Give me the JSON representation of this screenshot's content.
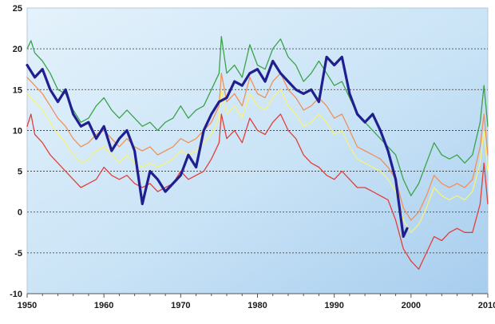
{
  "chart_data": {
    "type": "line",
    "title": "",
    "xlabel": "",
    "ylabel": "",
    "xlim": [
      1950,
      2010
    ],
    "ylim": [
      -10,
      25
    ],
    "grid": "horizontal dashed",
    "legend": "none",
    "x_ticks": [
      "1950",
      "1960",
      "1970",
      "1980",
      "1990",
      "2000",
      "2010"
    ],
    "y_ticks": [
      "25",
      "20",
      "15",
      "10",
      "5",
      "0",
      "-5",
      "-10"
    ],
    "series": [
      {
        "color": "#3aa34a",
        "points": [
          [
            1950,
            20
          ],
          [
            1950.5,
            21
          ],
          [
            1951,
            19.5
          ],
          [
            1952,
            18.5
          ],
          [
            1953,
            17
          ],
          [
            1954,
            15
          ],
          [
            1955,
            14.5
          ],
          [
            1956,
            12.5
          ],
          [
            1957,
            11
          ],
          [
            1958,
            11.5
          ],
          [
            1959,
            13
          ],
          [
            1960,
            14
          ],
          [
            1961,
            12.5
          ],
          [
            1962,
            11.5
          ],
          [
            1963,
            12.5
          ],
          [
            1964,
            11.5
          ],
          [
            1965,
            10.5
          ],
          [
            1966,
            11
          ],
          [
            1967,
            10
          ],
          [
            1968,
            11
          ],
          [
            1969,
            11.5
          ],
          [
            1970,
            13
          ],
          [
            1971,
            11.5
          ],
          [
            1972,
            12.5
          ],
          [
            1973,
            13
          ],
          [
            1974,
            15
          ],
          [
            1975,
            17
          ],
          [
            1975.3,
            21.5
          ],
          [
            1976,
            17
          ],
          [
            1977,
            18
          ],
          [
            1978,
            16.5
          ],
          [
            1979,
            20.5
          ],
          [
            1980,
            18
          ],
          [
            1981,
            17.5
          ],
          [
            1982,
            20
          ],
          [
            1983,
            21.2
          ],
          [
            1984,
            19
          ],
          [
            1985,
            18
          ],
          [
            1986,
            16
          ],
          [
            1987,
            17
          ],
          [
            1988,
            18.5
          ],
          [
            1989,
            17
          ],
          [
            1990,
            15.5
          ],
          [
            1991,
            16
          ],
          [
            1992,
            14
          ],
          [
            1993,
            12
          ],
          [
            1994,
            11
          ],
          [
            1995,
            10
          ],
          [
            1996,
            9
          ],
          [
            1997,
            8
          ],
          [
            1998,
            7
          ],
          [
            1999,
            4
          ],
          [
            2000,
            2
          ],
          [
            2001,
            3.5
          ],
          [
            2002,
            6
          ],
          [
            2003,
            8.5
          ],
          [
            2004,
            7
          ],
          [
            2005,
            6.5
          ],
          [
            2006,
            7
          ],
          [
            2007,
            6
          ],
          [
            2008,
            7
          ],
          [
            2009,
            11
          ],
          [
            2009.5,
            15.5
          ],
          [
            2010,
            10.5
          ]
        ]
      },
      {
        "color": "#f0905a",
        "points": [
          [
            1950,
            16.5
          ],
          [
            1951,
            15.5
          ],
          [
            1952,
            14.5
          ],
          [
            1953,
            13
          ],
          [
            1954,
            11.5
          ],
          [
            1955,
            10.5
          ],
          [
            1956,
            9
          ],
          [
            1957,
            8
          ],
          [
            1958,
            8.5
          ],
          [
            1959,
            9.5
          ],
          [
            1960,
            10
          ],
          [
            1961,
            9
          ],
          [
            1962,
            8
          ],
          [
            1963,
            9
          ],
          [
            1964,
            8
          ],
          [
            1965,
            7.5
          ],
          [
            1966,
            8
          ],
          [
            1967,
            7
          ],
          [
            1968,
            7.5
          ],
          [
            1969,
            8
          ],
          [
            1970,
            9
          ],
          [
            1971,
            8.5
          ],
          [
            1972,
            9
          ],
          [
            1973,
            10
          ],
          [
            1974,
            11
          ],
          [
            1975,
            13
          ],
          [
            1975.3,
            17
          ],
          [
            1976,
            13.5
          ],
          [
            1977,
            14.5
          ],
          [
            1978,
            13
          ],
          [
            1979,
            16.5
          ],
          [
            1980,
            14.5
          ],
          [
            1981,
            14
          ],
          [
            1982,
            16
          ],
          [
            1983,
            17
          ],
          [
            1984,
            15
          ],
          [
            1985,
            14
          ],
          [
            1986,
            12.5
          ],
          [
            1987,
            13
          ],
          [
            1988,
            14
          ],
          [
            1989,
            13
          ],
          [
            1990,
            11.5
          ],
          [
            1991,
            12
          ],
          [
            1992,
            10
          ],
          [
            1993,
            8
          ],
          [
            1994,
            7.5
          ],
          [
            1995,
            7
          ],
          [
            1996,
            6.5
          ],
          [
            1997,
            5.5
          ],
          [
            1998,
            4
          ],
          [
            1999,
            0.5
          ],
          [
            2000,
            -1
          ],
          [
            2001,
            0
          ],
          [
            2002,
            2
          ],
          [
            2003,
            4.5
          ],
          [
            2004,
            3.5
          ],
          [
            2005,
            3
          ],
          [
            2006,
            3.5
          ],
          [
            2007,
            3
          ],
          [
            2008,
            4
          ],
          [
            2009,
            8
          ],
          [
            2009.5,
            12
          ],
          [
            2010,
            7
          ]
        ]
      },
      {
        "color": "#f7f27a",
        "points": [
          [
            1950,
            14.5
          ],
          [
            1951,
            13.5
          ],
          [
            1952,
            12.5
          ],
          [
            1953,
            11
          ],
          [
            1954,
            9.5
          ],
          [
            1955,
            8.5
          ],
          [
            1956,
            7
          ],
          [
            1957,
            6
          ],
          [
            1958,
            6.5
          ],
          [
            1959,
            7.5
          ],
          [
            1960,
            8
          ],
          [
            1961,
            7
          ],
          [
            1962,
            6
          ],
          [
            1963,
            7
          ],
          [
            1964,
            6
          ],
          [
            1965,
            5.5
          ],
          [
            1966,
            6
          ],
          [
            1967,
            5.5
          ],
          [
            1968,
            6
          ],
          [
            1969,
            6.5
          ],
          [
            1970,
            7.5
          ],
          [
            1971,
            7
          ],
          [
            1972,
            7.5
          ],
          [
            1973,
            8.5
          ],
          [
            1974,
            9.5
          ],
          [
            1975,
            11.5
          ],
          [
            1975.3,
            15
          ],
          [
            1976,
            12
          ],
          [
            1977,
            13
          ],
          [
            1978,
            11.5
          ],
          [
            1979,
            14.5
          ],
          [
            1980,
            13
          ],
          [
            1981,
            12.5
          ],
          [
            1982,
            14
          ],
          [
            1983,
            15
          ],
          [
            1984,
            13
          ],
          [
            1985,
            12
          ],
          [
            1986,
            10.5
          ],
          [
            1987,
            11
          ],
          [
            1988,
            12
          ],
          [
            1989,
            11
          ],
          [
            1990,
            9.5
          ],
          [
            1991,
            10
          ],
          [
            1992,
            8
          ],
          [
            1993,
            6.5
          ],
          [
            1994,
            6
          ],
          [
            1995,
            5.5
          ],
          [
            1996,
            5
          ],
          [
            1997,
            4
          ],
          [
            1998,
            2.5
          ],
          [
            1999,
            -1
          ],
          [
            2000,
            -2.5
          ],
          [
            2001,
            -1.5
          ],
          [
            2002,
            0.5
          ],
          [
            2003,
            3
          ],
          [
            2004,
            2
          ],
          [
            2005,
            1.5
          ],
          [
            2006,
            2
          ],
          [
            2007,
            1.5
          ],
          [
            2008,
            2.5
          ],
          [
            2009,
            6
          ],
          [
            2009.5,
            10
          ],
          [
            2010,
            5
          ]
        ]
      },
      {
        "color": "#e0403a",
        "points": [
          [
            1950,
            10.5
          ],
          [
            1950.5,
            12
          ],
          [
            1951,
            9.5
          ],
          [
            1952,
            8.5
          ],
          [
            1953,
            7
          ],
          [
            1954,
            6
          ],
          [
            1955,
            5
          ],
          [
            1956,
            4
          ],
          [
            1957,
            3
          ],
          [
            1958,
            3.5
          ],
          [
            1959,
            4
          ],
          [
            1960,
            5.5
          ],
          [
            1961,
            4.5
          ],
          [
            1962,
            4
          ],
          [
            1963,
            4.5
          ],
          [
            1964,
            3.5
          ],
          [
            1965,
            3
          ],
          [
            1966,
            3.5
          ],
          [
            1967,
            2.5
          ],
          [
            1968,
            3
          ],
          [
            1969,
            3.5
          ],
          [
            1970,
            5
          ],
          [
            1971,
            4
          ],
          [
            1972,
            4.5
          ],
          [
            1973,
            5
          ],
          [
            1974,
            6.5
          ],
          [
            1975,
            8.5
          ],
          [
            1975.3,
            12
          ],
          [
            1976,
            9
          ],
          [
            1977,
            10
          ],
          [
            1978,
            8.5
          ],
          [
            1979,
            11.5
          ],
          [
            1980,
            10
          ],
          [
            1981,
            9.5
          ],
          [
            1982,
            11
          ],
          [
            1983,
            12
          ],
          [
            1984,
            10
          ],
          [
            1985,
            9
          ],
          [
            1986,
            7
          ],
          [
            1987,
            6
          ],
          [
            1988,
            5.5
          ],
          [
            1989,
            4.5
          ],
          [
            1990,
            4
          ],
          [
            1991,
            5
          ],
          [
            1992,
            4
          ],
          [
            1993,
            3
          ],
          [
            1994,
            3
          ],
          [
            1995,
            2.5
          ],
          [
            1996,
            2
          ],
          [
            1997,
            1.5
          ],
          [
            1998,
            -1
          ],
          [
            1999,
            -4.5
          ],
          [
            2000,
            -6
          ],
          [
            2001,
            -7
          ],
          [
            2002,
            -5
          ],
          [
            2003,
            -3
          ],
          [
            2004,
            -3.5
          ],
          [
            2005,
            -2.5
          ],
          [
            2006,
            -2
          ],
          [
            2007,
            -2.5
          ],
          [
            2008,
            -2.5
          ],
          [
            2009,
            1
          ],
          [
            2009.5,
            6
          ],
          [
            2010,
            1
          ]
        ]
      },
      {
        "color": "#1f1f8f",
        "points": [
          [
            1950,
            18
          ],
          [
            1951,
            16.5
          ],
          [
            1952,
            17.5
          ],
          [
            1953,
            15
          ],
          [
            1954,
            13.5
          ],
          [
            1955,
            15
          ],
          [
            1956,
            12
          ],
          [
            1957,
            10.5
          ],
          [
            1958,
            11
          ],
          [
            1959,
            9
          ],
          [
            1960,
            10.5
          ],
          [
            1961,
            7.5
          ],
          [
            1962,
            9
          ],
          [
            1963,
            10
          ],
          [
            1964,
            7.5
          ],
          [
            1965,
            1
          ],
          [
            1966,
            5
          ],
          [
            1967,
            4
          ],
          [
            1968,
            2.5
          ],
          [
            1969,
            3.5
          ],
          [
            1970,
            4.5
          ],
          [
            1971,
            7
          ],
          [
            1972,
            5.5
          ],
          [
            1973,
            10
          ],
          [
            1974,
            12
          ],
          [
            1975,
            13.5
          ],
          [
            1976,
            14
          ],
          [
            1977,
            16
          ],
          [
            1978,
            15.5
          ],
          [
            1979,
            17
          ],
          [
            1980,
            17.5
          ],
          [
            1981,
            16
          ],
          [
            1982,
            18.5
          ],
          [
            1983,
            17
          ],
          [
            1984,
            16
          ],
          [
            1985,
            15
          ],
          [
            1986,
            14.5
          ],
          [
            1987,
            15
          ],
          [
            1988,
            13.5
          ],
          [
            1989,
            19
          ],
          [
            1990,
            18
          ],
          [
            1991,
            19
          ],
          [
            1992,
            14.5
          ],
          [
            1993,
            12
          ],
          [
            1994,
            11
          ],
          [
            1995,
            12
          ],
          [
            1996,
            10
          ],
          [
            1997,
            7.5
          ],
          [
            1998,
            4
          ],
          [
            1999,
            -3
          ],
          [
            1999.5,
            -2
          ]
        ]
      }
    ]
  }
}
